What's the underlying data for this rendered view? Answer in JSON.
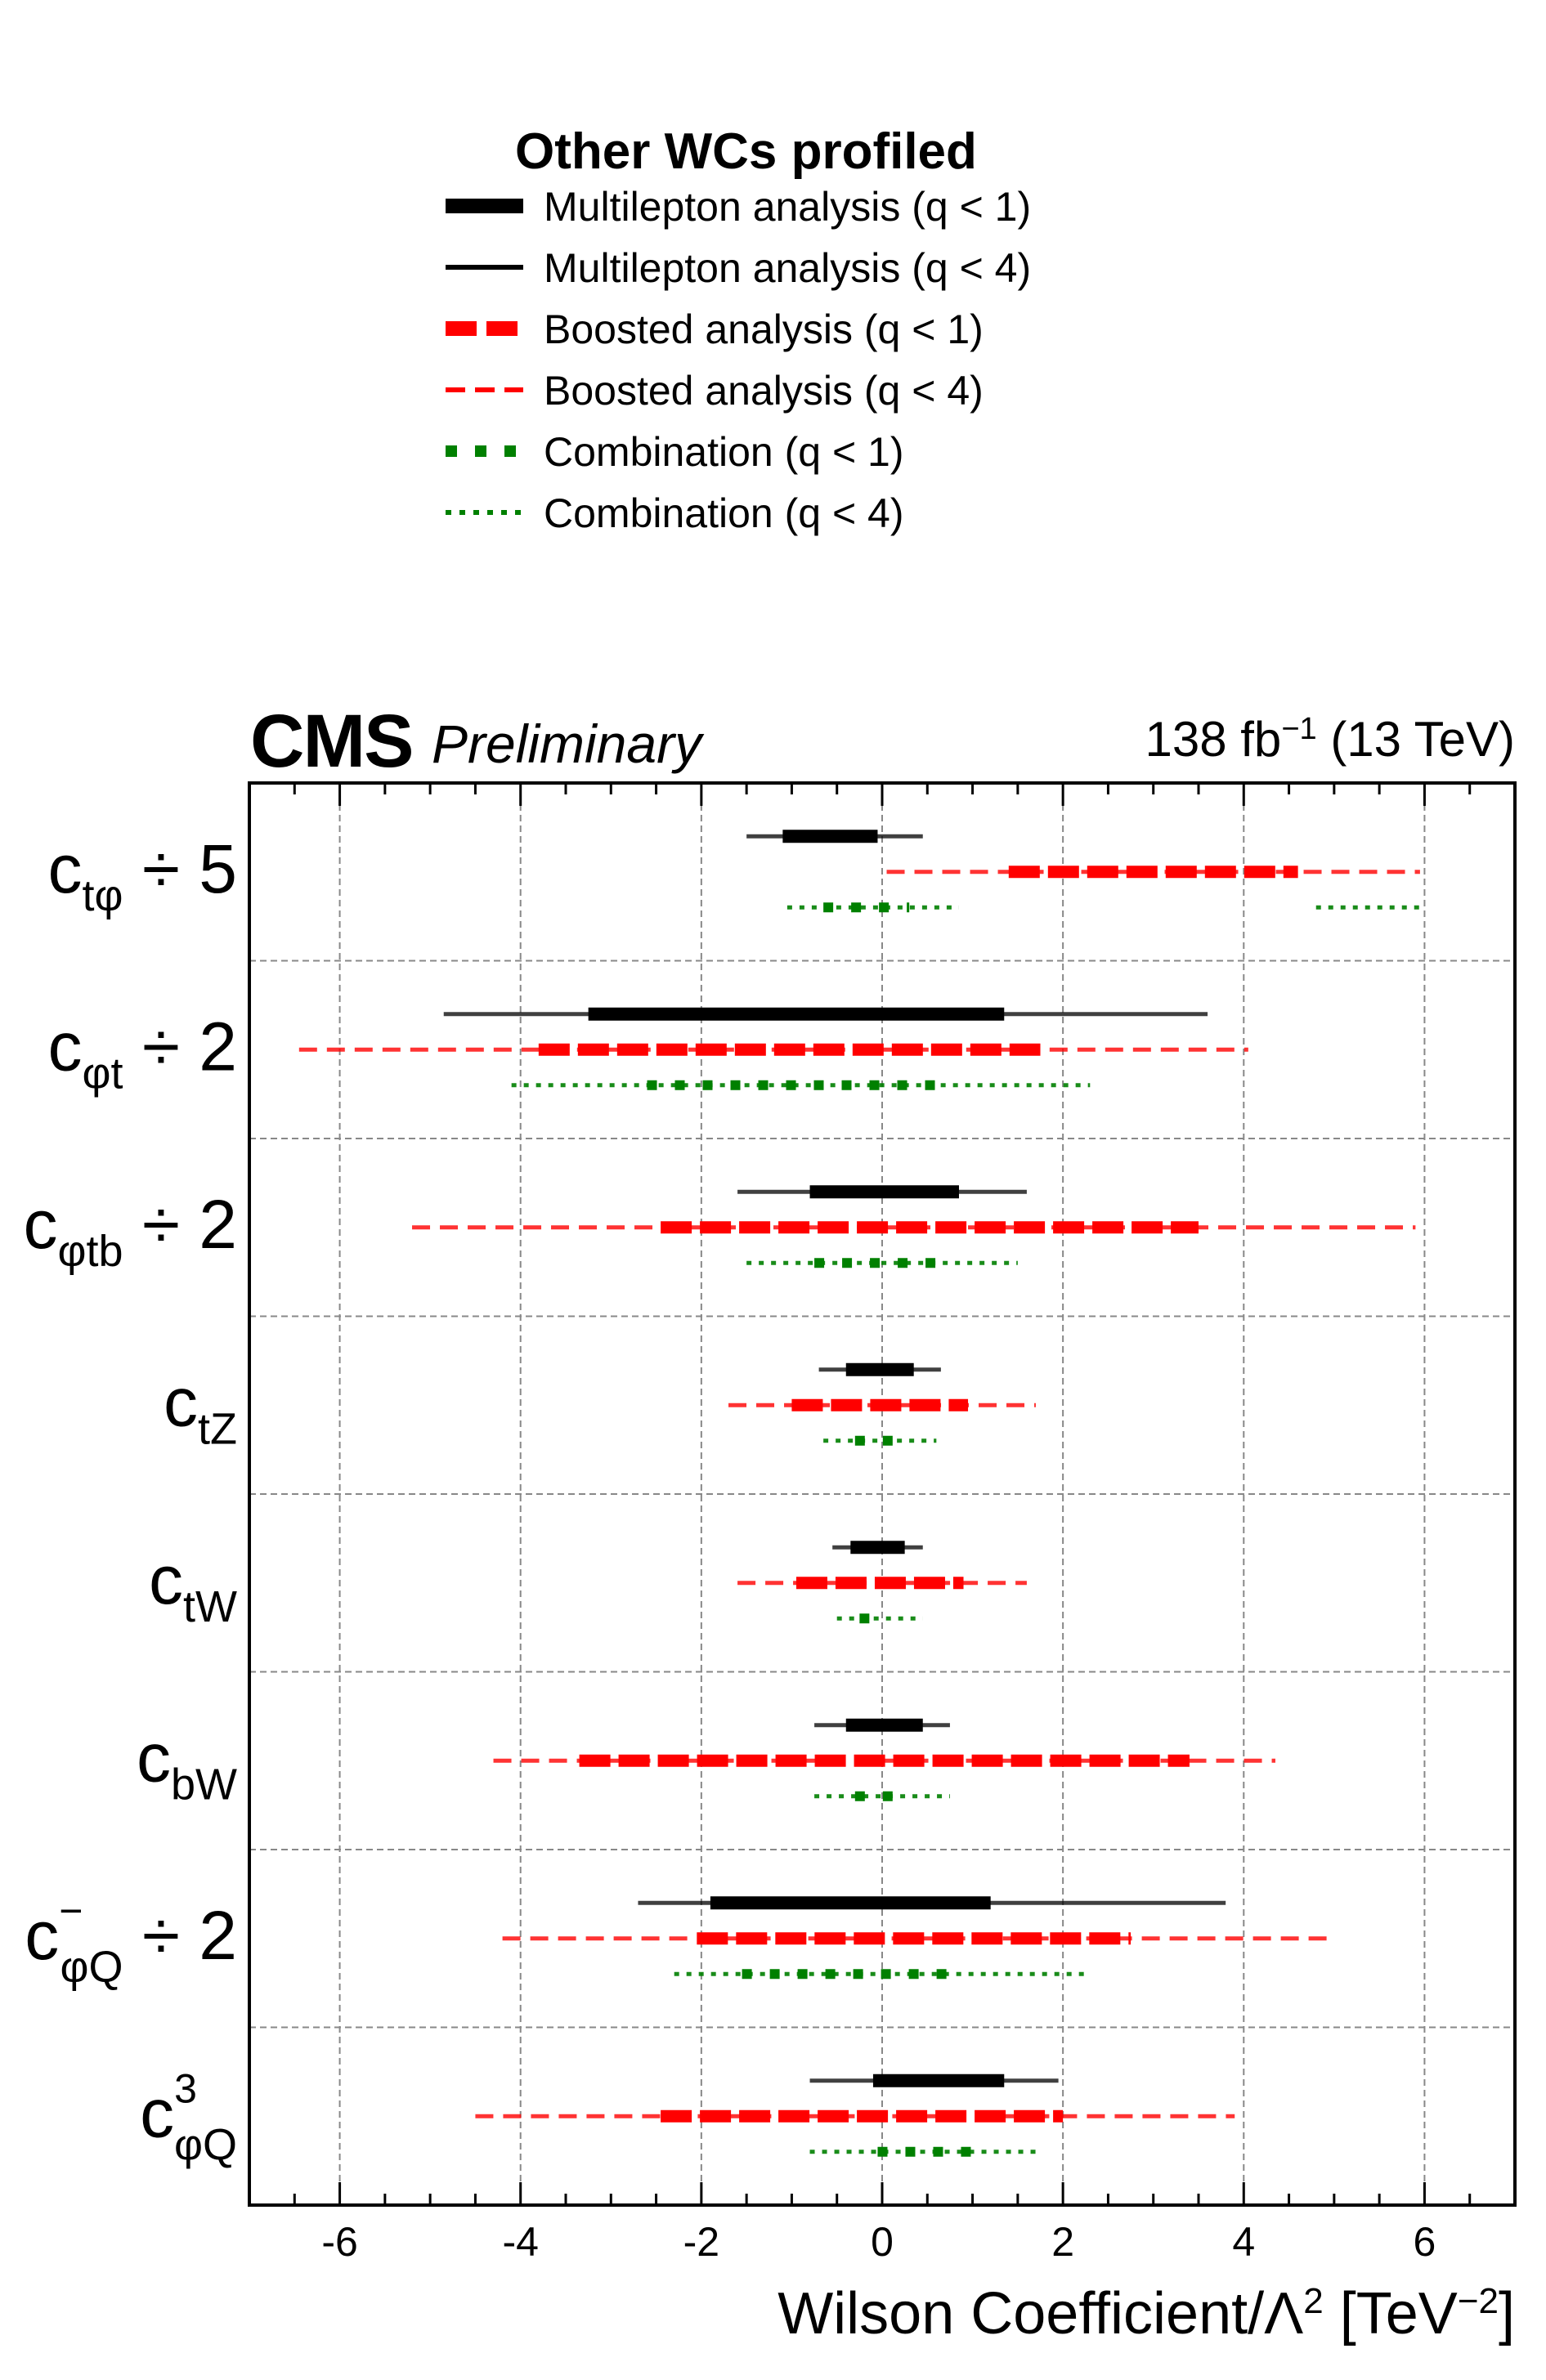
{
  "header": {
    "experiment": "CMS",
    "status": "Preliminary",
    "lumi": "138 fb",
    "lumi_exp": "−1",
    "energy": "(13 TeV)"
  },
  "legend": {
    "title": "Other WCs profiled",
    "entries": [
      {
        "label": "Multilepton analysis (q < 1)",
        "color": "#000000",
        "style": "solid-thick"
      },
      {
        "label": "Multilepton analysis (q < 4)",
        "color": "#000000",
        "style": "solid-thin"
      },
      {
        "label": "Boosted analysis (q < 1)",
        "color": "#ff0000",
        "style": "dashed-thick"
      },
      {
        "label": "Boosted analysis (q < 4)",
        "color": "#ff0000",
        "style": "dashed-thin"
      },
      {
        "label": "Combination (q < 1)",
        "color": "#008000",
        "style": "dotted-thick"
      },
      {
        "label": "Combination (q < 4)",
        "color": "#008000",
        "style": "dotted-thin"
      }
    ]
  },
  "colors": {
    "multilepton": "#000000",
    "boosted": "#ff0000",
    "combination": "#008000",
    "grid": "#888888"
  },
  "chart_data": {
    "type": "interval",
    "xlabel": "Wilson Coefficient/Λ",
    "xlabel_sup": "2",
    "xunit": "[TeV",
    "xunit_sup": "−2",
    "xunit_close": "]",
    "xlim": [
      -7,
      7
    ],
    "xticks": [
      -6,
      -4,
      -2,
      0,
      2,
      4,
      6
    ],
    "grid": true,
    "rows": [
      {
        "label": "c",
        "sub": "tφ",
        "sup": "",
        "suffix": " ÷ 5",
        "multilepton": {
          "q1": [
            [
              -1.1,
              -0.05
            ]
          ],
          "q4": [
            [
              -1.5,
              0.45
            ]
          ]
        },
        "boosted": {
          "q1": [
            [
              1.4,
              4.6
            ]
          ],
          "q4": [
            [
              0.05,
              5.95
            ]
          ]
        },
        "combination": {
          "q1": [
            [
              -0.65,
              0.3
            ]
          ],
          "q4": [
            [
              -1.05,
              0.85
            ],
            [
              4.8,
              5.95
            ]
          ]
        }
      },
      {
        "label": "c",
        "sub": "φt",
        "sup": "",
        "suffix": " ÷ 2",
        "multilepton": {
          "q1": [
            [
              -3.25,
              1.35
            ]
          ],
          "q4": [
            [
              -4.85,
              3.6
            ]
          ]
        },
        "boosted": {
          "q1": [
            [
              -3.8,
              1.75
            ]
          ],
          "q4": [
            [
              -6.45,
              4.05
            ]
          ]
        },
        "combination": {
          "q1": [
            [
              -2.6,
              0.7
            ]
          ],
          "q4": [
            [
              -4.1,
              2.3
            ]
          ]
        }
      },
      {
        "label": "c",
        "sub": "φtb",
        "sup": "",
        "suffix": " ÷ 2",
        "multilepton": {
          "q1": [
            [
              -0.8,
              0.85
            ]
          ],
          "q4": [
            [
              -1.6,
              1.6
            ]
          ]
        },
        "boosted": {
          "q1": [
            [
              -2.45,
              3.5
            ]
          ],
          "q4": [
            [
              -5.2,
              5.9
            ]
          ]
        },
        "combination": {
          "q1": [
            [
              -0.75,
              0.7
            ]
          ],
          "q4": [
            [
              -1.5,
              1.5
            ]
          ]
        }
      },
      {
        "label": "c",
        "sub": "tZ",
        "sup": "",
        "suffix": "",
        "multilepton": {
          "q1": [
            [
              -0.4,
              0.35
            ]
          ],
          "q4": [
            [
              -0.7,
              0.65
            ]
          ]
        },
        "boosted": {
          "q1": [
            [
              -1.0,
              0.95
            ]
          ],
          "q4": [
            [
              -1.7,
              1.7
            ]
          ]
        },
        "combination": {
          "q1": [
            [
              -0.3,
              0.25
            ]
          ],
          "q4": [
            [
              -0.65,
              0.6
            ]
          ]
        }
      },
      {
        "label": "c",
        "sub": "tW",
        "sup": "",
        "suffix": "",
        "multilepton": {
          "q1": [
            [
              -0.35,
              0.25
            ]
          ],
          "q4": [
            [
              -0.55,
              0.45
            ]
          ]
        },
        "boosted": {
          "q1": [
            [
              -0.95,
              0.9
            ]
          ],
          "q4": [
            [
              -1.6,
              1.6
            ]
          ]
        },
        "combination": {
          "q1": [
            [
              -0.25,
              0.05
            ]
          ],
          "q4": [
            [
              -0.5,
              0.45
            ]
          ]
        }
      },
      {
        "label": "c",
        "sub": "bW",
        "sup": "",
        "suffix": "",
        "multilepton": {
          "q1": [
            [
              -0.4,
              0.45
            ]
          ],
          "q4": [
            [
              -0.75,
              0.75
            ]
          ]
        },
        "boosted": {
          "q1": [
            [
              -3.35,
              3.4
            ]
          ],
          "q4": [
            [
              -4.3,
              4.35
            ]
          ]
        },
        "combination": {
          "q1": [
            [
              -0.3,
              0.2
            ]
          ],
          "q4": [
            [
              -0.75,
              0.75
            ]
          ]
        }
      },
      {
        "label": "c",
        "sub": "φQ",
        "sup": "−",
        "suffix": " ÷ 2",
        "multilepton": {
          "q1": [
            [
              -1.9,
              1.2
            ]
          ],
          "q4": [
            [
              -2.7,
              3.8
            ]
          ]
        },
        "boosted": {
          "q1": [
            [
              -2.05,
              2.75
            ]
          ],
          "q4": [
            [
              -4.2,
              5.0
            ]
          ]
        },
        "combination": {
          "q1": [
            [
              -1.55,
              0.75
            ]
          ],
          "q4": [
            [
              -2.3,
              2.25
            ]
          ]
        }
      },
      {
        "label": "c",
        "sub": "φQ",
        "sup": "3",
        "suffix": "",
        "multilepton": {
          "q1": [
            [
              -0.1,
              1.35
            ]
          ],
          "q4": [
            [
              -0.8,
              1.95
            ]
          ]
        },
        "boosted": {
          "q1": [
            [
              -2.45,
              2.0
            ]
          ],
          "q4": [
            [
              -4.5,
              3.9
            ]
          ]
        },
        "combination": {
          "q1": [
            [
              -0.05,
              1.0
            ]
          ],
          "q4": [
            [
              -0.8,
              1.75
            ]
          ]
        }
      }
    ]
  }
}
